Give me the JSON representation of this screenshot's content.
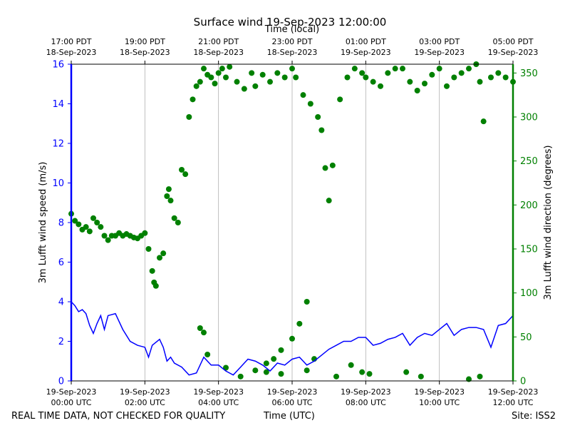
{
  "chart_data": {
    "type": "line",
    "title": "Surface wind 19-Sep-2023 12:00:00",
    "top_axis_label": "Time (local)",
    "xlabel": "Time (UTC)",
    "footer_left": "REAL TIME DATA, NOT CHECKED FOR QUALITY",
    "footer_right": "Site: ISS2",
    "x_range_hours": [
      0,
      12
    ],
    "left_axis": {
      "label": "3m Lufft wind speed (m/s)",
      "ylim": [
        0,
        16
      ],
      "ticks": [
        0,
        2,
        4,
        6,
        8,
        10,
        12,
        14,
        16
      ],
      "color": "#0000ff"
    },
    "right_axis": {
      "label": "3m Lufft wind direction (degrees)",
      "ylim": [
        0,
        360
      ],
      "ticks": [
        0,
        50,
        100,
        150,
        200,
        250,
        300,
        350
      ],
      "color": "#008000"
    },
    "bottom_ticks": [
      {
        "hour": 0,
        "date": "19-Sep-2023",
        "time": "00:00 UTC"
      },
      {
        "hour": 2,
        "date": "19-Sep-2023",
        "time": "02:00 UTC"
      },
      {
        "hour": 4,
        "date": "19-Sep-2023",
        "time": "04:00 UTC"
      },
      {
        "hour": 6,
        "date": "19-Sep-2023",
        "time": "06:00 UTC"
      },
      {
        "hour": 8,
        "date": "19-Sep-2023",
        "time": "08:00 UTC"
      },
      {
        "hour": 10,
        "date": "19-Sep-2023",
        "time": "10:00 UTC"
      },
      {
        "hour": 12,
        "date": "19-Sep-2023",
        "time": "12:00 UTC"
      }
    ],
    "top_ticks": [
      {
        "hour": 0,
        "time": "17:00 PDT",
        "date": "18-Sep-2023"
      },
      {
        "hour": 2,
        "time": "19:00 PDT",
        "date": "18-Sep-2023"
      },
      {
        "hour": 4,
        "time": "21:00 PDT",
        "date": "18-Sep-2023"
      },
      {
        "hour": 6,
        "time": "23:00 PDT",
        "date": "18-Sep-2023"
      },
      {
        "hour": 8,
        "time": "01:00 PDT",
        "date": "19-Sep-2023"
      },
      {
        "hour": 10,
        "time": "03:00 PDT",
        "date": "19-Sep-2023"
      },
      {
        "hour": 12,
        "time": "05:00 PDT",
        "date": "19-Sep-2023"
      }
    ],
    "series": [
      {
        "name": "3m Lufft wind speed",
        "axis": "left",
        "style": "line",
        "color": "#0000ff",
        "x": [
          0.0,
          0.1,
          0.2,
          0.3,
          0.4,
          0.5,
          0.6,
          0.7,
          0.8,
          0.9,
          1.0,
          1.2,
          1.4,
          1.6,
          1.8,
          2.0,
          2.1,
          2.2,
          2.4,
          2.5,
          2.6,
          2.7,
          2.8,
          3.0,
          3.2,
          3.4,
          3.6,
          3.8,
          4.0,
          4.2,
          4.4,
          4.6,
          4.8,
          5.0,
          5.2,
          5.4,
          5.6,
          5.8,
          6.0,
          6.2,
          6.4,
          6.6,
          6.8,
          7.0,
          7.2,
          7.4,
          7.6,
          7.8,
          8.0,
          8.2,
          8.4,
          8.6,
          8.8,
          9.0,
          9.2,
          9.4,
          9.6,
          9.8,
          10.0,
          10.2,
          10.4,
          10.6,
          10.8,
          11.0,
          11.2,
          11.4,
          11.6,
          11.8,
          12.0
        ],
        "values": [
          4.0,
          3.8,
          3.5,
          3.6,
          3.4,
          2.8,
          2.4,
          2.9,
          3.3,
          2.6,
          3.3,
          3.4,
          2.6,
          2.0,
          1.8,
          1.7,
          1.2,
          1.8,
          2.1,
          1.7,
          1.0,
          1.2,
          0.9,
          0.7,
          0.3,
          0.4,
          1.2,
          0.8,
          0.8,
          0.5,
          0.3,
          0.7,
          1.1,
          1.0,
          0.8,
          0.5,
          0.9,
          0.8,
          1.1,
          1.2,
          0.8,
          1.0,
          1.3,
          1.6,
          1.8,
          2.0,
          2.0,
          2.2,
          2.2,
          1.8,
          1.9,
          2.1,
          2.2,
          2.4,
          1.8,
          2.2,
          2.4,
          2.3,
          2.6,
          2.9,
          2.3,
          2.6,
          2.7,
          2.7,
          2.6,
          1.7,
          2.8,
          2.9,
          3.3
        ]
      },
      {
        "name": "3m Lufft wind direction",
        "axis": "right",
        "style": "scatter",
        "color": "#008000",
        "x": [
          0.0,
          0.1,
          0.2,
          0.3,
          0.4,
          0.5,
          0.6,
          0.7,
          0.8,
          0.9,
          1.0,
          1.1,
          1.2,
          1.3,
          1.4,
          1.5,
          1.6,
          1.7,
          1.8,
          1.9,
          2.0,
          2.1,
          2.2,
          2.25,
          2.3,
          2.4,
          2.5,
          2.6,
          2.65,
          2.7,
          2.8,
          2.9,
          3.0,
          3.1,
          3.2,
          3.3,
          3.4,
          3.5,
          3.6,
          3.7,
          3.8,
          3.9,
          4.0,
          4.1,
          4.2,
          4.3,
          4.5,
          4.7,
          4.9,
          5.0,
          5.2,
          5.4,
          5.6,
          5.8,
          6.0,
          6.1,
          6.3,
          6.5,
          6.7,
          6.8,
          6.9,
          7.0,
          7.1,
          7.3,
          7.5,
          7.7,
          7.9,
          8.0,
          8.2,
          8.4,
          8.6,
          8.8,
          9.0,
          9.2,
          9.4,
          9.6,
          9.8,
          10.0,
          10.2,
          10.4,
          10.6,
          10.8,
          11.0,
          11.1,
          11.2,
          11.4,
          11.6,
          11.8,
          12.0,
          3.5,
          3.7,
          4.2,
          4.6,
          5.0,
          5.3,
          5.5,
          5.7,
          6.0,
          6.2,
          6.4,
          6.6,
          7.2,
          7.6,
          7.9,
          8.1,
          9.1,
          9.5,
          10.8,
          11.1,
          3.6,
          5.3,
          5.7,
          6.4
        ],
        "values": [
          190,
          182,
          178,
          172,
          175,
          170,
          185,
          180,
          175,
          165,
          160,
          165,
          165,
          168,
          165,
          167,
          165,
          163,
          162,
          165,
          168,
          150,
          125,
          112,
          108,
          140,
          145,
          210,
          218,
          205,
          185,
          180,
          240,
          235,
          300,
          320,
          335,
          340,
          355,
          348,
          345,
          338,
          350,
          355,
          345,
          357,
          340,
          332,
          350,
          335,
          348,
          340,
          350,
          345,
          355,
          345,
          325,
          315,
          300,
          285,
          242,
          205,
          245,
          320,
          345,
          355,
          350,
          345,
          340,
          335,
          350,
          355,
          355,
          340,
          330,
          338,
          348,
          355,
          335,
          345,
          350,
          355,
          360,
          340,
          295,
          345,
          350,
          345,
          340,
          60,
          30,
          15,
          5,
          12,
          20,
          25,
          35,
          48,
          65,
          90,
          25,
          5,
          18,
          10,
          8,
          10,
          5,
          2,
          5,
          55,
          10,
          8,
          12
        ]
      }
    ]
  }
}
